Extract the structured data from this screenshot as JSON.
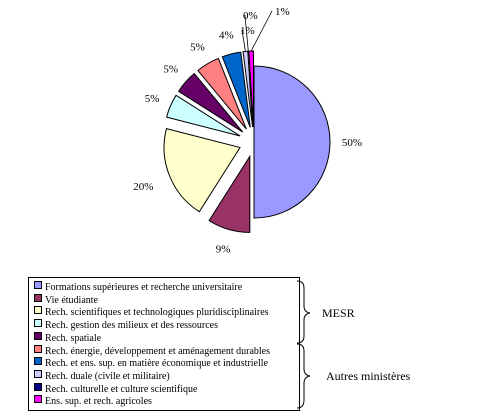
{
  "chart_data": {
    "type": "pie",
    "categories": [
      "Formations supérieures et recherche universitaire",
      "Vie étudiante",
      "Rech. scientifiques et technologiques pluridisciplinaires",
      "Rech. gestion des milieux et des ressources",
      "Rech. spatiale",
      "Rech. énergie, développement et aménagement durables",
      "Rech. et ens. sup. en matière économique et industrielle",
      "Rech. duale (civile et militaire)",
      "Rech. culturelle et culture scientifique",
      "Ens. sup. et rech. agricoles"
    ],
    "values": [
      50,
      9,
      20,
      5,
      5,
      5,
      4,
      1,
      0,
      1
    ],
    "value_labels": [
      "50%",
      "9%",
      "20%",
      "5%",
      "5%",
      "5%",
      "4%",
      "1%",
      "0%",
      "1%"
    ],
    "colors": [
      "#9999ff",
      "#993366",
      "#ffffcc",
      "#ccffff",
      "#660066",
      "#ff8080",
      "#0066cc",
      "#ccccff",
      "#000080",
      "#ff00ff"
    ],
    "exploded": true,
    "legend_position": "bottom",
    "groups": [
      {
        "label": "MESR",
        "members": [
          0,
          1,
          2,
          3,
          4
        ]
      },
      {
        "label": "Autres ministères",
        "members": [
          5,
          6,
          7,
          8,
          9
        ]
      }
    ]
  }
}
